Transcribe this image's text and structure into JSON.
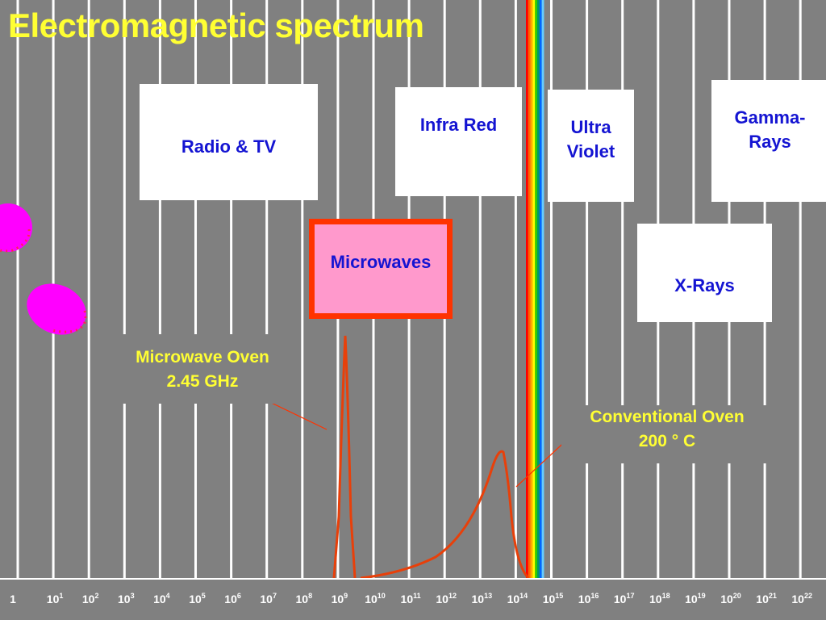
{
  "title": "Electromagnetic spectrum",
  "bands": {
    "radio_tv": "Radio & TV",
    "infra_red": "Infra Red",
    "ultra_violet": [
      "Ultra",
      "Violet"
    ],
    "gamma_rays": [
      "Gamma-",
      "Rays"
    ],
    "x_rays": "X-Rays",
    "microwaves": "Microwaves"
  },
  "annotations": {
    "microwave_oven": [
      "Microwave Oven",
      "2.45 GHz"
    ],
    "conventional_oven": [
      "Conventional Oven",
      "200 °  C"
    ]
  },
  "axis": {
    "ticks": [
      {
        "base": "1",
        "exp": ""
      },
      {
        "base": "10",
        "exp": "1"
      },
      {
        "base": "10",
        "exp": "2"
      },
      {
        "base": "10",
        "exp": "3"
      },
      {
        "base": "10",
        "exp": "4"
      },
      {
        "base": "10",
        "exp": "5"
      },
      {
        "base": "10",
        "exp": "6"
      },
      {
        "base": "10",
        "exp": "7"
      },
      {
        "base": "10",
        "exp": "8"
      },
      {
        "base": "10",
        "exp": "9"
      },
      {
        "base": "10",
        "exp": "10"
      },
      {
        "base": "10",
        "exp": "11"
      },
      {
        "base": "10",
        "exp": "12"
      },
      {
        "base": "10",
        "exp": "13"
      },
      {
        "base": "10",
        "exp": "14"
      },
      {
        "base": "10",
        "exp": "15"
      },
      {
        "base": "10",
        "exp": "16"
      },
      {
        "base": "10",
        "exp": "17"
      },
      {
        "base": "10",
        "exp": "18"
      },
      {
        "base": "10",
        "exp": "19"
      },
      {
        "base": "10",
        "exp": "20"
      },
      {
        "base": "10",
        "exp": "21"
      },
      {
        "base": "10",
        "exp": "22"
      }
    ]
  },
  "colors": {
    "background": "#808080",
    "title": "#ffff33",
    "band_text": "#1414d2",
    "curve": "#e8400a",
    "microwave_fill": "#ff99cc",
    "microwave_border": "#ff3300",
    "blob": "#ff00ff"
  }
}
